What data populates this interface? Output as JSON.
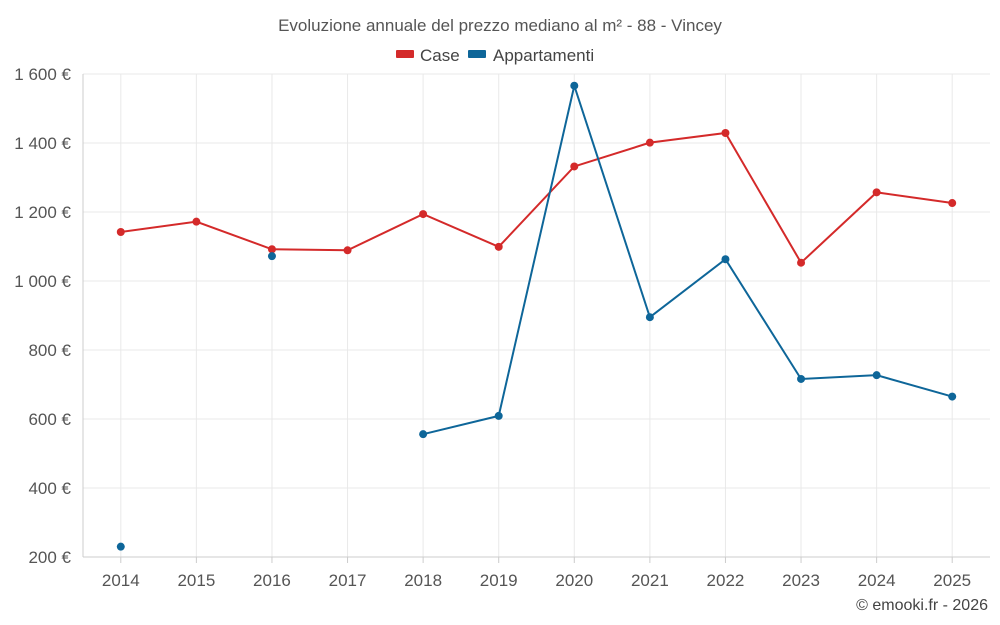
{
  "chart_data": {
    "type": "line",
    "title": "Evoluzione annuale del prezzo mediano al m² - 88 - Vincey",
    "categories": [
      "2014",
      "2015",
      "2016",
      "2017",
      "2018",
      "2019",
      "2020",
      "2021",
      "2022",
      "2023",
      "2024",
      "2025"
    ],
    "ylim": [
      200,
      1600
    ],
    "yticks": [
      200,
      400,
      600,
      800,
      1000,
      1200,
      1400,
      1600
    ],
    "ytick_labels": [
      "200 €",
      "400 €",
      "600 €",
      "800 €",
      "1 000 €",
      "1 200 €",
      "1 400 €",
      "1 600 €"
    ],
    "grid": true,
    "legend_position": "top-center",
    "series": [
      {
        "name": "Case",
        "color": "#d42a2a",
        "values": [
          1142,
          1172,
          1092,
          1089,
          1194,
          1099,
          1332,
          1401,
          1429,
          1053,
          1257,
          1226
        ]
      },
      {
        "name": "Appartamenti",
        "color": "#0e6699",
        "values": [
          230,
          null,
          1072,
          null,
          556,
          609,
          1566,
          895,
          1063,
          716,
          727,
          665
        ]
      }
    ]
  },
  "credit": "© emooki.fr - 2026"
}
